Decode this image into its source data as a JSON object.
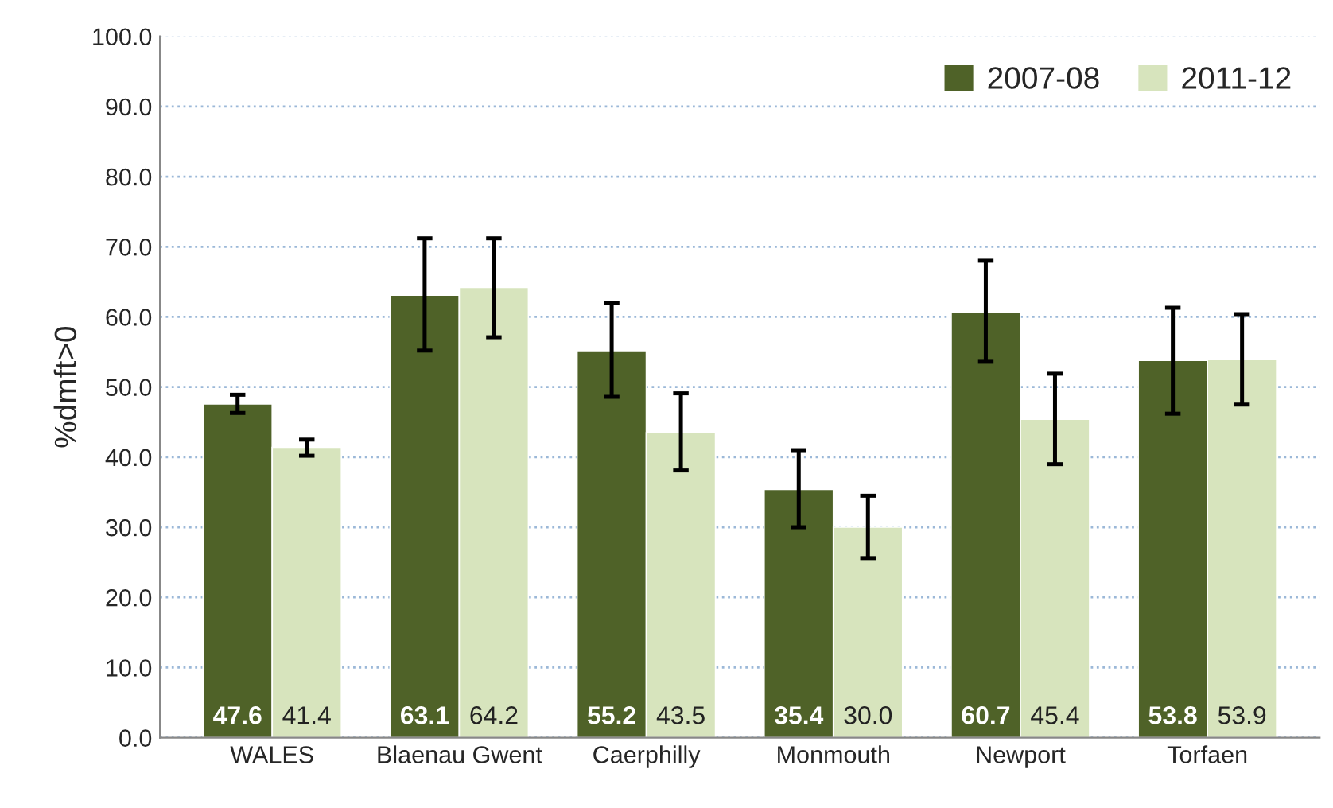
{
  "chart_data": {
    "type": "bar",
    "ylabel": "%dmft>0",
    "categories": [
      "WALES",
      "Blaenau Gwent",
      "Caerphilly",
      "Monmouth",
      "Newport",
      "Torfaen"
    ],
    "series": [
      {
        "name": "2007-08",
        "color": "#4f6228",
        "values": [
          47.6,
          63.1,
          55.2,
          35.4,
          60.7,
          53.8
        ],
        "value_labels": [
          "47.6",
          "63.1",
          "55.2",
          "35.4",
          "60.7",
          "53.8"
        ],
        "errors": [
          [
            46.3,
            48.9
          ],
          [
            55.2,
            71.2
          ],
          [
            48.6,
            62.0
          ],
          [
            30.0,
            41.0
          ],
          [
            53.6,
            68.0
          ],
          [
            46.2,
            61.3
          ]
        ]
      },
      {
        "name": "2011-12",
        "color": "#d7e4bd",
        "values": [
          41.4,
          64.2,
          43.5,
          30.0,
          45.4,
          53.9
        ],
        "value_labels": [
          "41.4",
          "64.2",
          "43.5",
          "30.0",
          "45.4",
          "53.9"
        ],
        "errors": [
          [
            40.2,
            42.5
          ],
          [
            57.1,
            71.2
          ],
          [
            38.1,
            49.1
          ],
          [
            25.6,
            34.5
          ],
          [
            39.0,
            51.9
          ],
          [
            47.5,
            60.4
          ]
        ]
      }
    ],
    "ylim": [
      0,
      100
    ],
    "yticks": [
      {
        "value": 0,
        "label": "0.0"
      },
      {
        "value": 10,
        "label": "10.0"
      },
      {
        "value": 20,
        "label": "20.0"
      },
      {
        "value": 30,
        "label": "30.0"
      },
      {
        "value": 40,
        "label": "40.0"
      },
      {
        "value": 50,
        "label": "50.0"
      },
      {
        "value": 60,
        "label": "60.0"
      },
      {
        "value": 70,
        "label": "70.0"
      },
      {
        "value": 80,
        "label": "80.0"
      },
      {
        "value": 90,
        "label": "90.0"
      },
      {
        "value": 100,
        "label": "100.0"
      }
    ],
    "grid": "y",
    "legend": "top right"
  }
}
